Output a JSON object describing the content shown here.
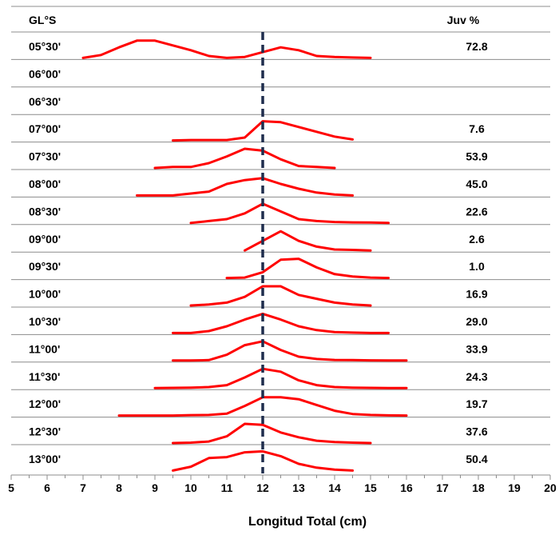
{
  "chart_data": {
    "type": "line",
    "title": "",
    "xlabel": "Longitud Total (cm)",
    "row_header": "GL°S",
    "value_header": "Juv %",
    "xlim": [
      5,
      20
    ],
    "xticks": [
      "5",
      "6",
      "7",
      "8",
      "9",
      "10",
      "11",
      "12",
      "13",
      "14",
      "15",
      "16",
      "17",
      "18",
      "19",
      "20"
    ],
    "reference_line_x": 12,
    "line_color": "#ff0000",
    "reference_color": "#1f2d4d",
    "rows": [
      {
        "lat": "05°30'",
        "juv": "72.8",
        "x": [
          7,
          7.5,
          8,
          8.5,
          9,
          9.5,
          10,
          10.5,
          11,
          11.5,
          12,
          12.5,
          13,
          13.5,
          14,
          14.5,
          15
        ],
        "y": [
          0.0,
          0.15,
          0.55,
          0.9,
          0.9,
          0.65,
          0.4,
          0.1,
          0.0,
          0.05,
          0.3,
          0.55,
          0.4,
          0.1,
          0.05,
          0.02,
          0.0
        ]
      },
      {
        "lat": "06°00'",
        "juv": "",
        "x": [],
        "y": []
      },
      {
        "lat": "06°30'",
        "juv": "",
        "x": [],
        "y": []
      },
      {
        "lat": "07°00'",
        "juv": "7.6",
        "x": [
          9.5,
          10,
          10.5,
          11,
          11.5,
          12,
          12.5,
          13,
          13.5,
          14,
          14.5
        ],
        "y": [
          0.0,
          0.02,
          0.02,
          0.02,
          0.15,
          1.0,
          0.95,
          0.7,
          0.45,
          0.2,
          0.05
        ]
      },
      {
        "lat": "07°30'",
        "juv": "53.9",
        "x": [
          9,
          9.5,
          10,
          10.5,
          11,
          11.5,
          12,
          12.5,
          13,
          13.5,
          14
        ],
        "y": [
          0.0,
          0.05,
          0.05,
          0.25,
          0.6,
          1.0,
          0.9,
          0.45,
          0.1,
          0.05,
          0.0
        ]
      },
      {
        "lat": "08°00'",
        "juv": "45.0",
        "x": [
          8.5,
          9,
          9.5,
          10,
          10.5,
          11,
          11.5,
          12,
          12.5,
          13,
          13.5,
          14,
          14.5
        ],
        "y": [
          0.0,
          0.0,
          0.0,
          0.1,
          0.2,
          0.6,
          0.8,
          0.9,
          0.6,
          0.35,
          0.15,
          0.05,
          0.0
        ]
      },
      {
        "lat": "08°30'",
        "juv": "22.6",
        "x": [
          10,
          10.5,
          11,
          11.5,
          12,
          12.5,
          13,
          13.5,
          14,
          14.5,
          15,
          15.5
        ],
        "y": [
          0.0,
          0.1,
          0.2,
          0.5,
          1.0,
          0.6,
          0.2,
          0.1,
          0.05,
          0.03,
          0.02,
          0.0
        ]
      },
      {
        "lat": "09°00'",
        "juv": "2.6",
        "x": [
          11.5,
          12,
          12.5,
          13,
          13.5,
          14,
          14.5,
          15
        ],
        "y": [
          0.0,
          0.5,
          1.0,
          0.5,
          0.2,
          0.05,
          0.03,
          0.0
        ]
      },
      {
        "lat": "09°30'",
        "juv": "1.0",
        "x": [
          11,
          11.5,
          12,
          12.5,
          13,
          13.5,
          14,
          14.5,
          15,
          15.5
        ],
        "y": [
          0.0,
          0.02,
          0.3,
          0.95,
          1.0,
          0.55,
          0.2,
          0.08,
          0.02,
          0.0
        ]
      },
      {
        "lat": "10°00'",
        "juv": "16.9",
        "x": [
          10,
          10.5,
          11,
          11.5,
          12,
          12.5,
          13,
          13.5,
          14,
          14.5,
          15
        ],
        "y": [
          0.0,
          0.05,
          0.15,
          0.45,
          1.0,
          1.0,
          0.55,
          0.35,
          0.15,
          0.05,
          0.0
        ]
      },
      {
        "lat": "10°30'",
        "juv": "29.0",
        "x": [
          9.5,
          10,
          10.5,
          11,
          11.5,
          12,
          12.5,
          13,
          13.5,
          14,
          14.5,
          15,
          15.5
        ],
        "y": [
          0.0,
          0.0,
          0.1,
          0.35,
          0.7,
          1.0,
          0.7,
          0.35,
          0.15,
          0.05,
          0.02,
          0.0,
          0.0
        ]
      },
      {
        "lat": "11°00'",
        "juv": "33.9",
        "x": [
          9.5,
          10,
          10.5,
          11,
          11.5,
          12,
          12.5,
          13,
          13.5,
          14,
          14.5,
          15,
          15.5,
          16
        ],
        "y": [
          0.0,
          0.0,
          0.02,
          0.3,
          0.8,
          1.0,
          0.55,
          0.2,
          0.08,
          0.03,
          0.02,
          0.01,
          0.0,
          0.0
        ]
      },
      {
        "lat": "11°30'",
        "juv": "24.3",
        "x": [
          9,
          9.5,
          10,
          10.5,
          11,
          11.5,
          12,
          12.5,
          13,
          13.5,
          14,
          14.5,
          15,
          15.5,
          16
        ],
        "y": [
          0.0,
          0.01,
          0.02,
          0.05,
          0.15,
          0.55,
          1.0,
          0.85,
          0.4,
          0.15,
          0.05,
          0.02,
          0.01,
          0.0,
          0.0
        ]
      },
      {
        "lat": "12°00'",
        "juv": "19.7",
        "x": [
          8,
          8.5,
          9,
          9.5,
          10,
          10.5,
          11,
          11.5,
          12,
          12.5,
          13,
          13.5,
          14,
          14.5,
          15,
          15.5,
          16
        ],
        "y": [
          0.0,
          0.0,
          0.0,
          0.0,
          0.02,
          0.03,
          0.1,
          0.5,
          0.95,
          0.95,
          0.85,
          0.55,
          0.25,
          0.08,
          0.03,
          0.01,
          0.0
        ]
      },
      {
        "lat": "12°30'",
        "juv": "37.6",
        "x": [
          9.5,
          10,
          10.5,
          11,
          11.5,
          12,
          12.5,
          13,
          13.5,
          14,
          14.5,
          15
        ],
        "y": [
          0.0,
          0.02,
          0.08,
          0.35,
          1.0,
          0.95,
          0.55,
          0.3,
          0.12,
          0.05,
          0.02,
          0.0
        ]
      },
      {
        "lat": "13°00'",
        "juv": "50.4",
        "x": [
          9.5,
          10,
          10.5,
          11,
          11.5,
          12,
          12.5,
          13,
          13.5,
          14,
          14.5
        ],
        "y": [
          0.0,
          0.2,
          0.65,
          0.7,
          0.95,
          1.0,
          0.75,
          0.35,
          0.15,
          0.05,
          0.0
        ]
      }
    ]
  }
}
